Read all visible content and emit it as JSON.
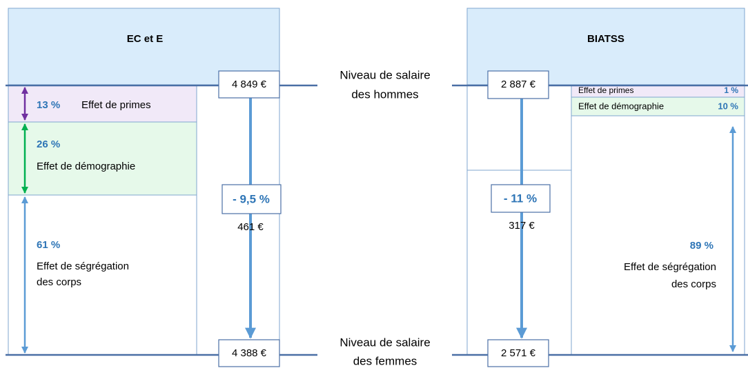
{
  "left": {
    "title": "EC et E",
    "men_salary": "4 849 €",
    "women_salary": "4 388 €",
    "gap_pct": "- 9,5 %",
    "gap_amount": "461 €",
    "effects": [
      {
        "pct": "13 %",
        "label": [
          "Effet de primes"
        ]
      },
      {
        "pct": "26 %",
        "label": [
          "Effet de démographie"
        ]
      },
      {
        "pct": "61 %",
        "label": [
          "Effet de ségrégation",
          "des corps"
        ]
      }
    ]
  },
  "center": {
    "men_label": [
      "Niveau de salaire",
      "des hommes"
    ],
    "women_label": [
      "Niveau de salaire",
      "des femmes"
    ]
  },
  "right": {
    "title": "BIATSS",
    "men_salary": "2 887 €",
    "women_salary": "2 571 €",
    "gap_pct": "- 11 %",
    "gap_amount": "317 €",
    "effects": [
      {
        "pct": "1 %",
        "label": [
          "Effet de primes"
        ]
      },
      {
        "pct": "10 %",
        "label": [
          "Effet de démographie"
        ]
      },
      {
        "pct": "89 %",
        "label": [
          "Effet de ségrégation",
          "des corps"
        ]
      }
    ]
  }
}
